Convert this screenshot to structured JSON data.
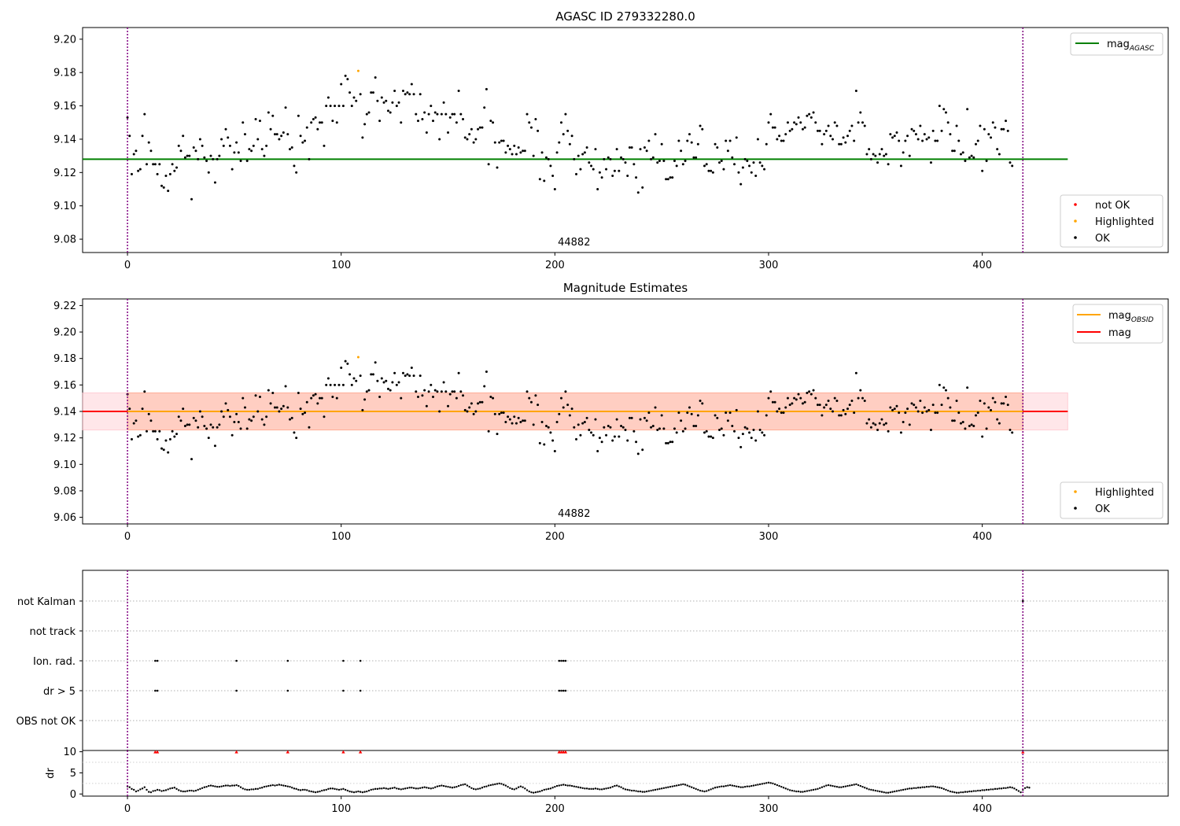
{
  "figure": {
    "agasc_title": "AGASC ID 279332280.0",
    "obsid_label": "44882"
  },
  "chart_data": [
    {
      "type": "scatter",
      "title": "AGASC ID 279332280.0",
      "xlim": [
        -21,
        487
      ],
      "ylim": [
        9.072,
        9.207
      ],
      "x_ticks": [
        0,
        100,
        200,
        300,
        400
      ],
      "y_ticks": [
        9.08,
        9.1,
        9.12,
        9.14,
        9.16,
        9.18,
        9.2
      ],
      "annotation": "44882",
      "obs_boundaries": [
        0,
        419
      ],
      "lines": [
        {
          "name": "mag_AGASC",
          "y": 9.128,
          "x_range": [
            -21,
            440
          ],
          "color": "#008000"
        }
      ],
      "legend_lines": [
        {
          "label": "mag",
          "sub": "AGASC",
          "color": "#008000"
        }
      ],
      "legend_points": [
        {
          "label": "not OK",
          "color": "#ff0000"
        },
        {
          "label": "Highlighted",
          "color": "#ffa500"
        },
        {
          "label": "OK",
          "color": "#000000"
        }
      ],
      "series": [
        {
          "name": "OK",
          "color": "#000000",
          "source": "mag_series"
        },
        {
          "name": "Highlighted",
          "color": "#ffa500",
          "points": [
            [
              108,
              9.181
            ]
          ]
        }
      ]
    },
    {
      "type": "scatter",
      "title": "Magnitude Estimates",
      "xlim": [
        -21,
        487
      ],
      "ylim": [
        9.055,
        9.225
      ],
      "x_ticks": [
        0,
        100,
        200,
        300,
        400
      ],
      "y_ticks": [
        9.06,
        9.08,
        9.1,
        9.12,
        9.14,
        9.16,
        9.18,
        9.2,
        9.22
      ],
      "annotation": "44882",
      "obs_boundaries": [
        0,
        419
      ],
      "bands": [
        {
          "y": [
            9.126,
            9.154
          ],
          "x_range": [
            -21,
            440
          ],
          "color": "#ffb6c1",
          "opacity": 0.35
        },
        {
          "y": [
            9.126,
            9.154
          ],
          "x_range": [
            0,
            419
          ],
          "color": "#ffa07a",
          "opacity": 0.35
        }
      ],
      "lines": [
        {
          "name": "mag",
          "y": 9.14,
          "x_range": [
            -21,
            440
          ],
          "color": "#ff0000"
        },
        {
          "name": "mag_OBSID",
          "y": 9.14,
          "x_range": [
            0,
            419
          ],
          "color": "#ffa500"
        }
      ],
      "legend_lines": [
        {
          "label": "mag",
          "sub": "OBSID",
          "color": "#ffa500"
        },
        {
          "label": "mag",
          "sub": "",
          "color": "#ff0000"
        }
      ],
      "legend_points": [
        {
          "label": "Highlighted",
          "color": "#ffa500"
        },
        {
          "label": "OK",
          "color": "#000000"
        }
      ],
      "series": [
        {
          "name": "OK",
          "color": "#000000",
          "source": "mag_series"
        },
        {
          "name": "Highlighted",
          "color": "#ffa500",
          "points": [
            [
              108,
              9.181
            ]
          ]
        }
      ]
    },
    {
      "type": "scatter",
      "title": "",
      "xlim": [
        -21,
        487
      ],
      "categories": [
        "not Kalman",
        "not track",
        "Ion. rad.",
        "dr > 5",
        "OBS not OK"
      ],
      "flags": {
        "not Kalman": [
          419
        ],
        "not track": [],
        "Ion. rad.": [
          13,
          14,
          51,
          75,
          101,
          109,
          202,
          203,
          204,
          205
        ],
        "dr > 5": [
          13,
          14,
          51,
          75,
          101,
          109,
          202,
          203,
          204,
          205
        ],
        "OBS not OK": []
      },
      "obs_boundaries": [
        0,
        419
      ]
    },
    {
      "type": "scatter",
      "title": "",
      "ylabel": "dr",
      "xlim": [
        -21,
        487
      ],
      "ylim": [
        -0.5,
        10.3
      ],
      "x_ticks": [
        0,
        100,
        200,
        300,
        400
      ],
      "y_ticks": [
        0,
        5,
        10
      ],
      "outliers": {
        "y": 10,
        "x": [
          13,
          14,
          51,
          75,
          101,
          109,
          202,
          203,
          204,
          205,
          419
        ],
        "color": "#ff0000"
      },
      "obs_boundaries": [
        0,
        419
      ]
    }
  ],
  "mag_series": {
    "x_step": 1,
    "y": [
      9.153,
      9.142,
      9.119,
      9.131,
      9.133,
      9.121,
      9.122,
      9.142,
      9.155,
      9.125,
      9.138,
      9.133,
      9.125,
      9.125,
      9.119,
      9.125,
      9.112,
      9.111,
      9.118,
      9.109,
      9.119,
      9.125,
      9.121,
      9.123,
      9.136,
      9.133,
      9.142,
      9.129,
      9.13,
      9.13,
      9.104,
      9.135,
      9.133,
      9.128,
      9.14,
      9.136,
      9.129,
      9.127,
      9.12,
      9.13,
      9.128,
      9.114,
      9.128,
      9.13,
      9.14,
      9.136,
      9.146,
      9.141,
      9.136,
      9.122,
      9.132,
      9.138,
      9.132,
      9.127,
      9.15,
      9.143,
      9.127,
      9.134,
      9.133,
      9.136,
      9.152,
      9.14,
      9.151,
      9.134,
      9.13,
      9.136,
      9.156,
      9.146,
      9.154,
      9.143,
      9.143,
      9.14,
      9.142,
      9.144,
      9.159,
      9.143,
      9.134,
      9.135,
      9.124,
      9.12,
      9.154,
      9.142,
      9.138,
      9.139,
      9.147,
      9.128,
      9.15,
      9.152,
      9.153,
      9.146,
      9.15,
      9.15,
      9.136,
      9.16,
      9.165,
      9.16,
      9.151,
      9.16,
      9.15,
      9.16,
      9.173,
      9.16,
      9.178,
      9.176,
      9.168,
      9.16,
      9.165,
      9.163,
      9.181,
      9.167,
      9.141,
      9.149,
      9.155,
      9.156,
      9.168,
      9.168,
      9.177,
      9.163,
      9.151,
      9.165,
      9.162,
      9.163,
      9.157,
      9.156,
      9.162,
      9.169,
      9.16,
      9.162,
      9.15,
      9.169,
      9.167,
      9.168,
      9.167,
      9.173,
      9.167,
      9.155,
      9.151,
      9.167,
      9.152,
      9.156,
      9.144,
      9.155,
      9.16,
      9.151,
      9.156,
      9.155,
      9.14,
      9.155,
      9.162,
      9.155,
      9.144,
      9.153,
      9.155,
      9.155,
      9.15,
      9.169,
      9.155,
      9.152,
      9.141,
      9.14,
      9.143,
      9.146,
      9.138,
      9.14,
      9.146,
      9.147,
      9.147,
      9.159,
      9.17,
      9.125,
      9.151,
      9.15,
      9.138,
      9.123,
      9.138,
      9.139,
      9.139,
      9.132,
      9.136,
      9.134,
      9.131,
      9.136,
      9.131,
      9.135,
      9.132,
      9.133,
      9.133,
      9.155,
      9.15,
      9.147,
      9.13,
      9.152,
      9.145,
      9.116,
      9.132,
      9.115,
      9.129,
      9.128,
      9.124,
      9.118,
      9.11,
      9.132,
      9.138,
      9.15,
      9.143,
      9.155,
      9.145,
      9.137,
      9.142,
      9.128,
      9.119,
      9.13,
      9.122,
      9.131,
      9.132,
      9.135,
      9.126,
      9.124,
      9.122,
      9.134,
      9.11,
      9.12,
      9.117,
      9.128,
      9.122,
      9.129,
      9.128,
      9.118,
      9.121,
      9.134,
      9.121,
      9.129,
      9.128,
      9.126,
      9.118,
      9.135,
      9.135,
      9.125,
      9.117,
      9.108,
      9.134,
      9.111,
      9.135,
      9.133,
      9.139,
      9.128,
      9.129,
      9.143,
      9.126,
      9.127,
      9.137,
      9.127,
      9.116,
      9.116,
      9.117,
      9.117,
      9.127,
      9.124,
      9.139,
      9.133,
      9.125,
      9.127,
      9.139,
      9.143,
      9.138,
      9.129,
      9.129,
      9.137,
      9.148,
      9.146,
      9.124,
      9.125,
      9.121,
      9.121,
      9.12,
      9.137,
      9.135,
      9.126,
      9.127,
      9.122,
      9.139,
      9.133,
      9.139,
      9.129,
      9.125,
      9.141,
      9.12,
      9.113,
      9.123,
      9.128,
      9.127,
      9.124,
      9.12,
      9.126,
      9.118,
      9.14,
      9.126,
      9.124,
      9.122,
      9.137,
      9.15,
      9.155,
      9.147,
      9.147,
      9.14,
      9.142,
      9.139,
      9.139,
      9.143,
      9.15,
      9.145,
      9.146,
      9.15,
      9.149,
      9.153,
      9.15,
      9.146,
      9.147,
      9.154,
      9.155,
      9.153,
      9.156,
      9.15,
      9.145,
      9.145,
      9.137,
      9.143,
      9.145,
      9.148,
      9.142,
      9.14,
      9.15,
      9.148,
      9.137,
      9.137,
      9.141,
      9.138,
      9.142,
      9.145,
      9.148,
      9.139,
      9.169,
      9.15,
      9.156,
      9.15,
      9.148,
      9.131,
      9.134,
      9.128,
      9.131,
      9.13,
      9.126,
      9.131,
      9.134,
      9.13,
      9.131,
      9.125,
      9.143,
      9.141,
      9.142,
      9.144,
      9.139,
      9.124,
      9.132,
      9.139,
      9.142,
      9.13,
      9.146,
      9.145,
      9.143,
      9.14,
      9.148,
      9.139,
      9.143,
      9.14,
      9.141,
      9.126,
      9.145,
      9.139,
      9.139,
      9.16,
      9.145,
      9.158,
      9.156,
      9.15,
      9.143,
      9.133,
      9.133,
      9.148,
      9.139,
      9.131,
      9.132,
      9.127,
      9.158,
      9.129,
      9.13,
      9.129,
      9.137,
      9.139,
      9.148,
      9.121,
      9.146,
      9.127,
      9.143,
      9.141,
      9.15,
      9.147,
      9.134,
      9.131,
      9.146,
      9.146,
      9.151,
      9.145,
      9.126,
      9.124
    ]
  },
  "dr_series": {
    "x_step": 1,
    "y": [
      1.8,
      1.6,
      1.2,
      1.0,
      0.6,
      0.8,
      1.1,
      1.3,
      1.6,
      1.0,
      0.5,
      0.4,
      0.7,
      0.8,
      1.0,
      0.9,
      0.7,
      0.8,
      0.9,
      1.1,
      1.3,
      1.4,
      1.5,
      1.2,
      0.9,
      0.7,
      0.6,
      0.6,
      0.7,
      0.8,
      0.8,
      0.7,
      0.8,
      1.0,
      1.2,
      1.4,
      1.6,
      1.7,
      1.9,
      2.0,
      1.9,
      1.8,
      1.7,
      1.7,
      1.8,
      1.9,
      2.0,
      2.0,
      1.9,
      2.0,
      2.0,
      2.1,
      1.9,
      1.6,
      1.3,
      1.1,
      1.0,
      1.0,
      1.1,
      1.1,
      1.2,
      1.2,
      1.4,
      1.5,
      1.7,
      1.8,
      1.9,
      2.0,
      2.1,
      2.0,
      2.1,
      2.2,
      2.1,
      2.0,
      1.9,
      1.8,
      1.7,
      1.5,
      1.3,
      1.2,
      1.0,
      0.9,
      1.0,
      1.0,
      0.9,
      0.7,
      0.6,
      0.5,
      0.4,
      0.5,
      0.6,
      0.8,
      0.9,
      1.0,
      1.2,
      1.3,
      1.3,
      1.2,
      1.1,
      1.0,
      1.1,
      1.2,
      1.0,
      0.8,
      0.6,
      0.5,
      0.4,
      0.5,
      0.6,
      0.5,
      0.4,
      0.5,
      0.6,
      0.8,
      1.0,
      1.1,
      1.2,
      1.2,
      1.3,
      1.3,
      1.4,
      1.3,
      1.2,
      1.3,
      1.4,
      1.5,
      1.3,
      1.2,
      1.1,
      1.2,
      1.3,
      1.4,
      1.5,
      1.5,
      1.4,
      1.3,
      1.3,
      1.4,
      1.5,
      1.6,
      1.5,
      1.4,
      1.3,
      1.4,
      1.6,
      1.8,
      1.9,
      2.0,
      1.9,
      1.8,
      1.7,
      1.6,
      1.5,
      1.6,
      1.7,
      1.9,
      2.1,
      2.2,
      2.3,
      2.0,
      1.7,
      1.4,
      1.2,
      1.1,
      1.2,
      1.3,
      1.5,
      1.7,
      1.8,
      2.0,
      2.1,
      2.2,
      2.3,
      2.4,
      2.5,
      2.4,
      2.2,
      2.0,
      1.7,
      1.4,
      1.2,
      1.1,
      1.3,
      1.6,
      1.8,
      1.6,
      1.3,
      0.9,
      0.6,
      0.4,
      0.3,
      0.4,
      0.5,
      0.6,
      0.8,
      1.0,
      1.1,
      1.2,
      1.3,
      1.5,
      1.7,
      1.9,
      2.0,
      2.1,
      2.2,
      2.1,
      2.0,
      2.0,
      1.9,
      1.8,
      1.7,
      1.6,
      1.5,
      1.4,
      1.3,
      1.3,
      1.2,
      1.2,
      1.2,
      1.3,
      1.2,
      1.1,
      1.1,
      1.2,
      1.3,
      1.4,
      1.5,
      1.7,
      1.9,
      2.0,
      1.8,
      1.6,
      1.3,
      1.1,
      1.0,
      0.9,
      0.8,
      0.8,
      0.7,
      0.6,
      0.6,
      0.5,
      0.5,
      0.6,
      0.7,
      0.8,
      0.9,
      1.0,
      1.1,
      1.2,
      1.3,
      1.4,
      1.5,
      1.6,
      1.7,
      1.8,
      1.9,
      2.0,
      2.1,
      2.2,
      2.3,
      2.2,
      2.0,
      1.8,
      1.6,
      1.4,
      1.2,
      1.0,
      0.8,
      0.7,
      0.6,
      0.7,
      0.9,
      1.1,
      1.3,
      1.5,
      1.6,
      1.7,
      1.8,
      1.8,
      1.9,
      2.0,
      2.1,
      2.0,
      1.9,
      1.8,
      1.7,
      1.6,
      1.6,
      1.7,
      1.8,
      1.8,
      1.9,
      2.0,
      2.1,
      2.2,
      2.3,
      2.4,
      2.5,
      2.6,
      2.7,
      2.6,
      2.5,
      2.3,
      2.1,
      1.9,
      1.7,
      1.5,
      1.3,
      1.1,
      0.9,
      0.8,
      0.7,
      0.6,
      0.6,
      0.5,
      0.5,
      0.6,
      0.7,
      0.8,
      0.9,
      1.0,
      1.1,
      1.2,
      1.4,
      1.6,
      1.8,
      2.0,
      2.1,
      2.0,
      1.9,
      1.8,
      1.7,
      1.6,
      1.6,
      1.7,
      1.8,
      1.9,
      2.0,
      2.1,
      2.2,
      2.3,
      2.1,
      1.9,
      1.7,
      1.5,
      1.3,
      1.1,
      1.0,
      0.9,
      0.8,
      0.7,
      0.6,
      0.5,
      0.4,
      0.3,
      0.3,
      0.4,
      0.5,
      0.6,
      0.7,
      0.8,
      0.9,
      1.0,
      1.1,
      1.2,
      1.3,
      1.3,
      1.4,
      1.4,
      1.5,
      1.5,
      1.6,
      1.6,
      1.7,
      1.7,
      1.8,
      1.8,
      1.7,
      1.6,
      1.5,
      1.4,
      1.2,
      1.0,
      0.8,
      0.6,
      0.5,
      0.4,
      0.3,
      0.3,
      0.4,
      0.4,
      0.5,
      0.5,
      0.6,
      0.6,
      0.7,
      0.7,
      0.8,
      0.8,
      0.9,
      0.9,
      1.0,
      1.0,
      1.1,
      1.1,
      1.2,
      1.2,
      1.3,
      1.3,
      1.4,
      1.4,
      1.5,
      1.6,
      1.5,
      1.3,
      1.0,
      0.7,
      0.4,
      1.0,
      1.4,
      1.6,
      1.5
    ]
  },
  "colors": {
    "ok": "#000000",
    "not_ok": "#ff0000",
    "highlighted": "#ffa500",
    "agasc_line": "#008000",
    "mag_line": "#ff0000",
    "obsid_line": "#ffa500",
    "boundary": "#800080"
  }
}
